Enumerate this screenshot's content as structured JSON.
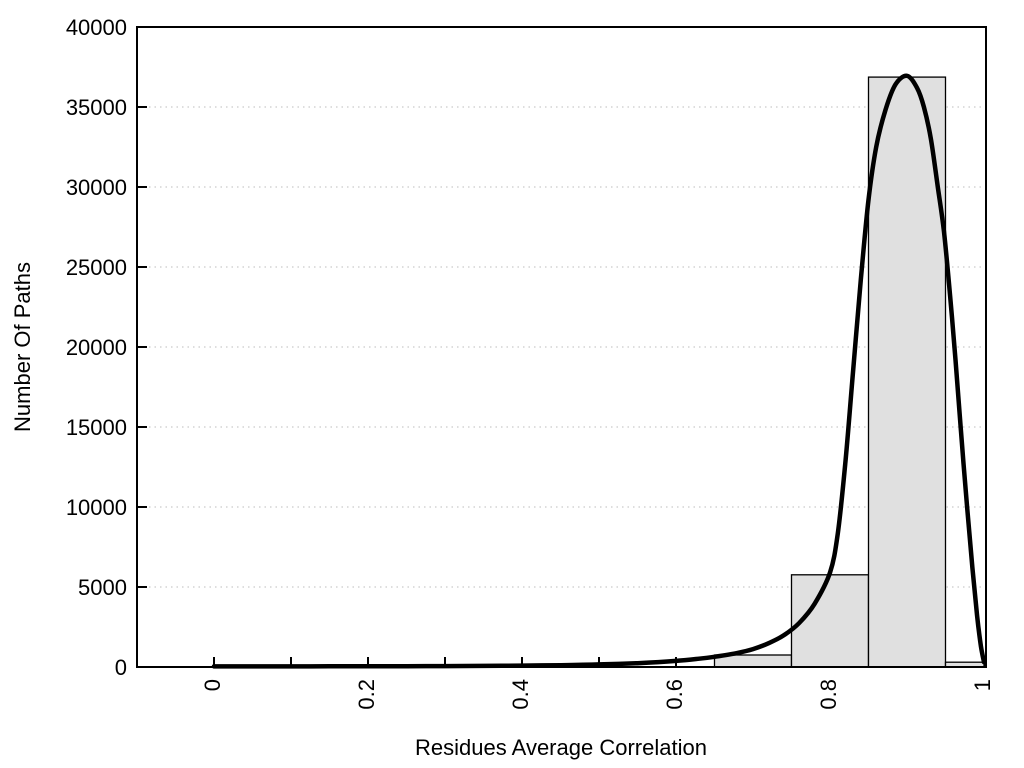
{
  "figure": {
    "background": "#ffffff"
  },
  "chart_data": {
    "type": "bar",
    "subtype": "histogram-with-fit-curve",
    "title": "",
    "xlabel": "Residues Average Correlation",
    "ylabel": "Number Of Paths",
    "xlim": [
      -0.1,
      1.0026
    ],
    "ylim": [
      0,
      40000
    ],
    "grid": "horizontal-dotted",
    "legend_position": "none",
    "x_ticks_major": [
      {
        "v": 0.0,
        "label": "0"
      },
      {
        "v": 0.2,
        "label": "0.2"
      },
      {
        "v": 0.4,
        "label": "0.4"
      },
      {
        "v": 0.6,
        "label": "0.6"
      },
      {
        "v": 0.8,
        "label": "0.8"
      },
      {
        "v": 1.0,
        "label": "1"
      }
    ],
    "x_ticks_minor": [
      0.1,
      0.3,
      0.5,
      0.7,
      0.9
    ],
    "y_ticks": [
      {
        "v": 0,
        "label": "0"
      },
      {
        "v": 5000,
        "label": "5000"
      },
      {
        "v": 10000,
        "label": "10000"
      },
      {
        "v": 15000,
        "label": "15000"
      },
      {
        "v": 20000,
        "label": "20000"
      },
      {
        "v": 25000,
        "label": "25000"
      },
      {
        "v": 30000,
        "label": "30000"
      },
      {
        "v": 35000,
        "label": "35000"
      },
      {
        "v": 40000,
        "label": "40000"
      }
    ],
    "gridlines_y": [
      5000,
      10000,
      15000,
      20000,
      25000,
      30000,
      35000
    ],
    "bins": [
      {
        "x0": 0.65,
        "x1": 0.75,
        "count": 750
      },
      {
        "x0": 0.75,
        "x1": 0.85,
        "count": 5760
      },
      {
        "x0": 0.85,
        "x1": 0.95,
        "count": 36870
      },
      {
        "x0": 0.95,
        "x1": 1.0,
        "count": 300
      }
    ],
    "fit_curve_points": [
      [
        0.0,
        40
      ],
      [
        0.05,
        40
      ],
      [
        0.1,
        40
      ],
      [
        0.15,
        42
      ],
      [
        0.2,
        45
      ],
      [
        0.25,
        50
      ],
      [
        0.3,
        58
      ],
      [
        0.35,
        70
      ],
      [
        0.4,
        88
      ],
      [
        0.45,
        115
      ],
      [
        0.5,
        160
      ],
      [
        0.55,
        240
      ],
      [
        0.6,
        380
      ],
      [
        0.63,
        520
      ],
      [
        0.65,
        640
      ],
      [
        0.68,
        880
      ],
      [
        0.7,
        1120
      ],
      [
        0.72,
        1480
      ],
      [
        0.74,
        1980
      ],
      [
        0.76,
        2750
      ],
      [
        0.78,
        3950
      ],
      [
        0.8,
        5900
      ],
      [
        0.81,
        8300
      ],
      [
        0.82,
        12800
      ],
      [
        0.83,
        18500
      ],
      [
        0.84,
        24200
      ],
      [
        0.85,
        29200
      ],
      [
        0.86,
        32500
      ],
      [
        0.872,
        34800
      ],
      [
        0.885,
        36400
      ],
      [
        0.9,
        36950
      ],
      [
        0.913,
        36200
      ],
      [
        0.922,
        35000
      ],
      [
        0.931,
        33000
      ],
      [
        0.94,
        30000
      ],
      [
        0.948,
        27200
      ],
      [
        0.956,
        23200
      ],
      [
        0.963,
        19200
      ],
      [
        0.97,
        14800
      ],
      [
        0.978,
        10000
      ],
      [
        0.985,
        6200
      ],
      [
        0.991,
        3200
      ],
      [
        0.996,
        1300
      ],
      [
        1.0,
        300
      ]
    ],
    "colors": {
      "bar_fill": "#e0e0e0",
      "bar_stroke": "#000000",
      "curve": "#000000",
      "grid": "#c9c9c9",
      "axis": "#000000",
      "text": "#000000",
      "background": "#ffffff"
    }
  }
}
